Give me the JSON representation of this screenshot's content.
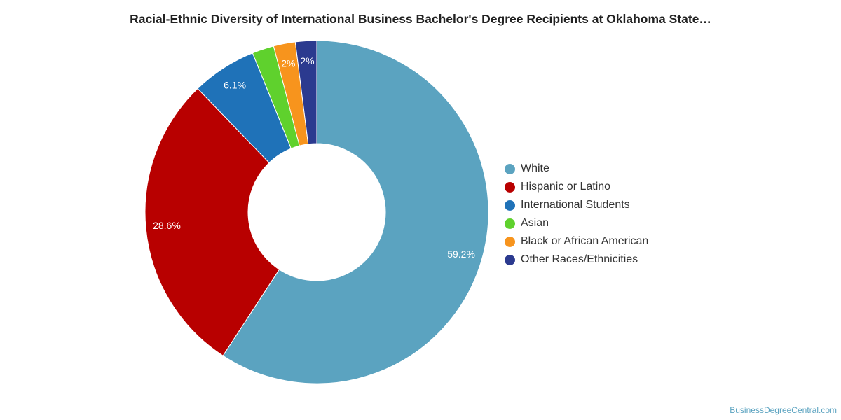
{
  "chart_data": {
    "type": "pie",
    "title": "Racial-Ethnic Diversity of International Business Bachelor's Degree Recipients at Oklahoma State…",
    "legend_position": "right",
    "slices": [
      {
        "name": "White",
        "value": 59.2,
        "label": "59.2%",
        "color": "#5ba3c0"
      },
      {
        "name": "Hispanic or Latino",
        "value": 28.6,
        "label": "28.6%",
        "color": "#b80000"
      },
      {
        "name": "International Students",
        "value": 6.1,
        "label": "6.1%",
        "color": "#1f72b8"
      },
      {
        "name": "Asian",
        "value": 2.05,
        "label": "",
        "color": "#5fd12d"
      },
      {
        "name": "Black or African American",
        "value": 2.05,
        "label": "2%",
        "color": "#f7941d"
      },
      {
        "name": "Other Races/Ethnicities",
        "value": 2.0,
        "label": "2%",
        "color": "#2b3a8f"
      }
    ]
  },
  "footer": {
    "source": "BusinessDegreeCentral.com"
  }
}
